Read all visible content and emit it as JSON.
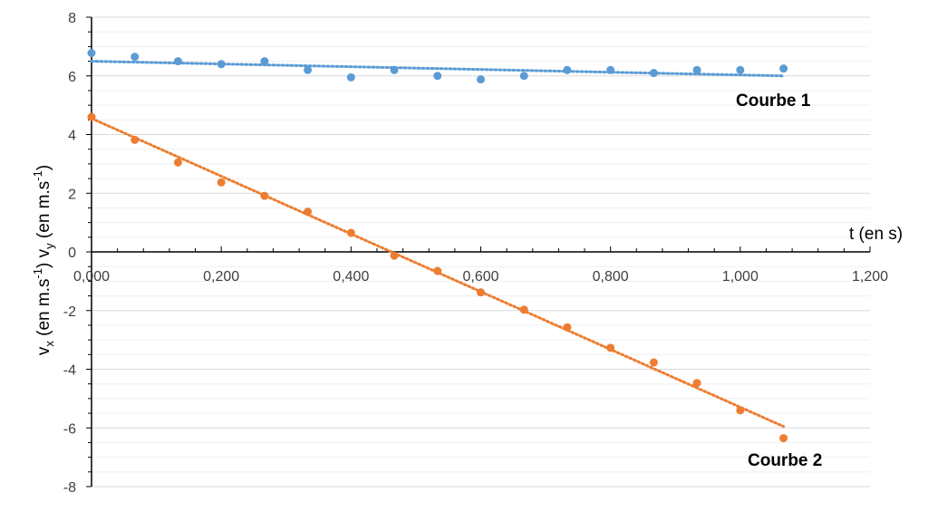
{
  "chart_data": {
    "type": "scatter",
    "xlabel": "t (en s)",
    "ylabel": {
      "v1": "v",
      "s1": "x",
      "t1": " (en m.s",
      "e1": "-1",
      "c1": ") ",
      "v2": "v",
      "s2": "y",
      "t2": " (en m.s",
      "e2": "-1",
      "c2": ")"
    },
    "xlim": [
      0,
      1.2
    ],
    "ylim": [
      -8,
      8
    ],
    "x_ticks": [
      0,
      0.2,
      0.4,
      0.6,
      0.8,
      1.0,
      1.2
    ],
    "x_tick_labels": [
      "0,000",
      "0,200",
      "0,400",
      "0,600",
      "0,800",
      "1,000",
      "1,200"
    ],
    "y_ticks": [
      -8,
      -6,
      -4,
      -2,
      0,
      2,
      4,
      6,
      8
    ],
    "y_tick_labels": [
      "-8",
      "-6",
      "-4",
      "-2",
      "0",
      "2",
      "4",
      "6",
      "8"
    ],
    "grid": true,
    "series": [
      {
        "name": "Courbe 1",
        "color": "#5b9bd5",
        "x": [
          0,
          0.0667,
          0.1333,
          0.2,
          0.2667,
          0.3333,
          0.4,
          0.4667,
          0.5333,
          0.6,
          0.6667,
          0.7333,
          0.8,
          0.8667,
          0.9333,
          1.0,
          1.0667
        ],
        "y": [
          6.78,
          6.65,
          6.5,
          6.4,
          6.5,
          6.2,
          5.95,
          6.2,
          6.0,
          5.88,
          6.0,
          6.2,
          6.2,
          6.1,
          6.2,
          6.2,
          6.25
        ],
        "trendline": {
          "x": [
            0,
            1.0667
          ],
          "y": [
            6.5,
            6.0
          ]
        }
      },
      {
        "name": "Courbe 2",
        "color": "#ed7d31",
        "x": [
          0,
          0.0667,
          0.1333,
          0.2,
          0.2667,
          0.3333,
          0.4,
          0.4667,
          0.5333,
          0.6,
          0.6667,
          0.7333,
          0.8,
          0.8667,
          0.9333,
          1.0,
          1.0667
        ],
        "y": [
          4.6,
          3.82,
          3.05,
          2.37,
          1.91,
          1.37,
          0.65,
          -0.13,
          -0.65,
          -1.38,
          -1.97,
          -2.57,
          -3.27,
          -3.77,
          -4.47,
          -5.4,
          -6.35
        ],
        "trendline": {
          "x": [
            0,
            1.0667
          ],
          "y": [
            4.55,
            -5.95
          ]
        }
      }
    ]
  }
}
